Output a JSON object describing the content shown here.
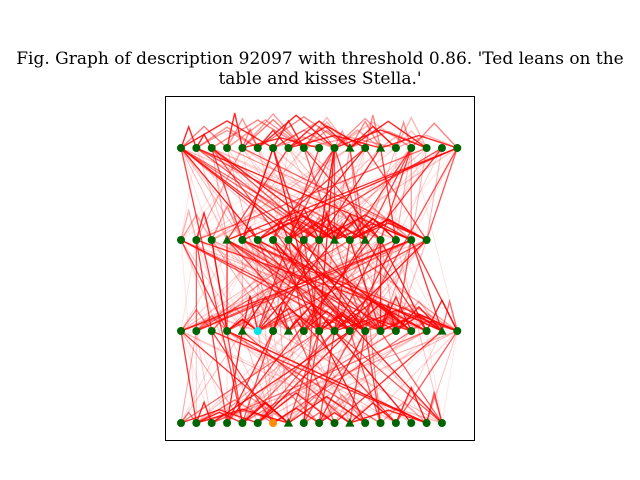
{
  "chart_data": {
    "type": "graph",
    "title_line1": "Fig. Graph of description 92097 with threshold 0.86. 'Ted leans on the",
    "title_line2": "table and kisses Stella.'",
    "threshold": 0.86,
    "description_id": 92097,
    "colors": {
      "node": "#006400",
      "edge": "#ff0000",
      "highlight_cyan": "#00e5e5",
      "highlight_orange": "#ff8c00",
      "frame": "#000000"
    },
    "layers": [
      {
        "name": "layer-1",
        "count": 19,
        "triangles": [
          11,
          13
        ],
        "highlights": {}
      },
      {
        "name": "layer-2",
        "count": 17,
        "triangles": [
          3,
          10,
          12
        ],
        "highlights": {}
      },
      {
        "name": "layer-3",
        "count": 19,
        "triangles": [
          4,
          7,
          17
        ],
        "highlights": {
          "5": "cyan"
        }
      },
      {
        "name": "layer-4",
        "count": 18,
        "triangles": [
          7,
          11
        ],
        "highlights": {
          "6": "orange"
        }
      }
    ]
  }
}
